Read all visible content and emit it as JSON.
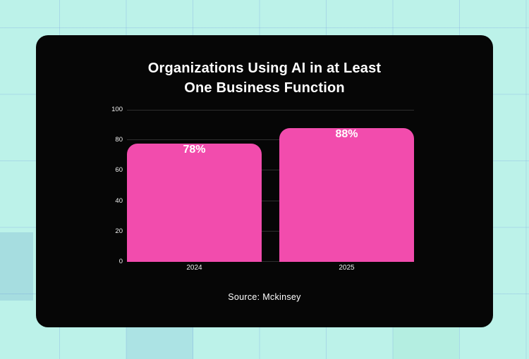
{
  "colors": {
    "page_background": "#BCF2E9",
    "grid_line": "rgba(130,170,225,0.35)",
    "card_background": "#060606",
    "bar_fill": "#F24CAD",
    "text_primary": "#FFFFFF",
    "axis_text": "#F0F0F0",
    "plot_grid_line": "#2E2E2E"
  },
  "card": {
    "title_line1": "Organizations Using AI in at Least",
    "title_line2": "One Business Function",
    "source": "Source: Mckinsey"
  },
  "chart_data": {
    "type": "bar",
    "title": "Organizations Using AI in at Least One Business Function",
    "categories": [
      "2024",
      "2025"
    ],
    "values": [
      78,
      88
    ],
    "value_labels": [
      "78%",
      "88%"
    ],
    "xlabel": "",
    "ylabel": "",
    "ylim": [
      0,
      100
    ],
    "yticks": [
      0,
      20,
      40,
      60,
      80,
      100
    ],
    "grid": true,
    "legend": false,
    "bar_color": "#F24CAD",
    "source": "Source: Mckinsey"
  }
}
